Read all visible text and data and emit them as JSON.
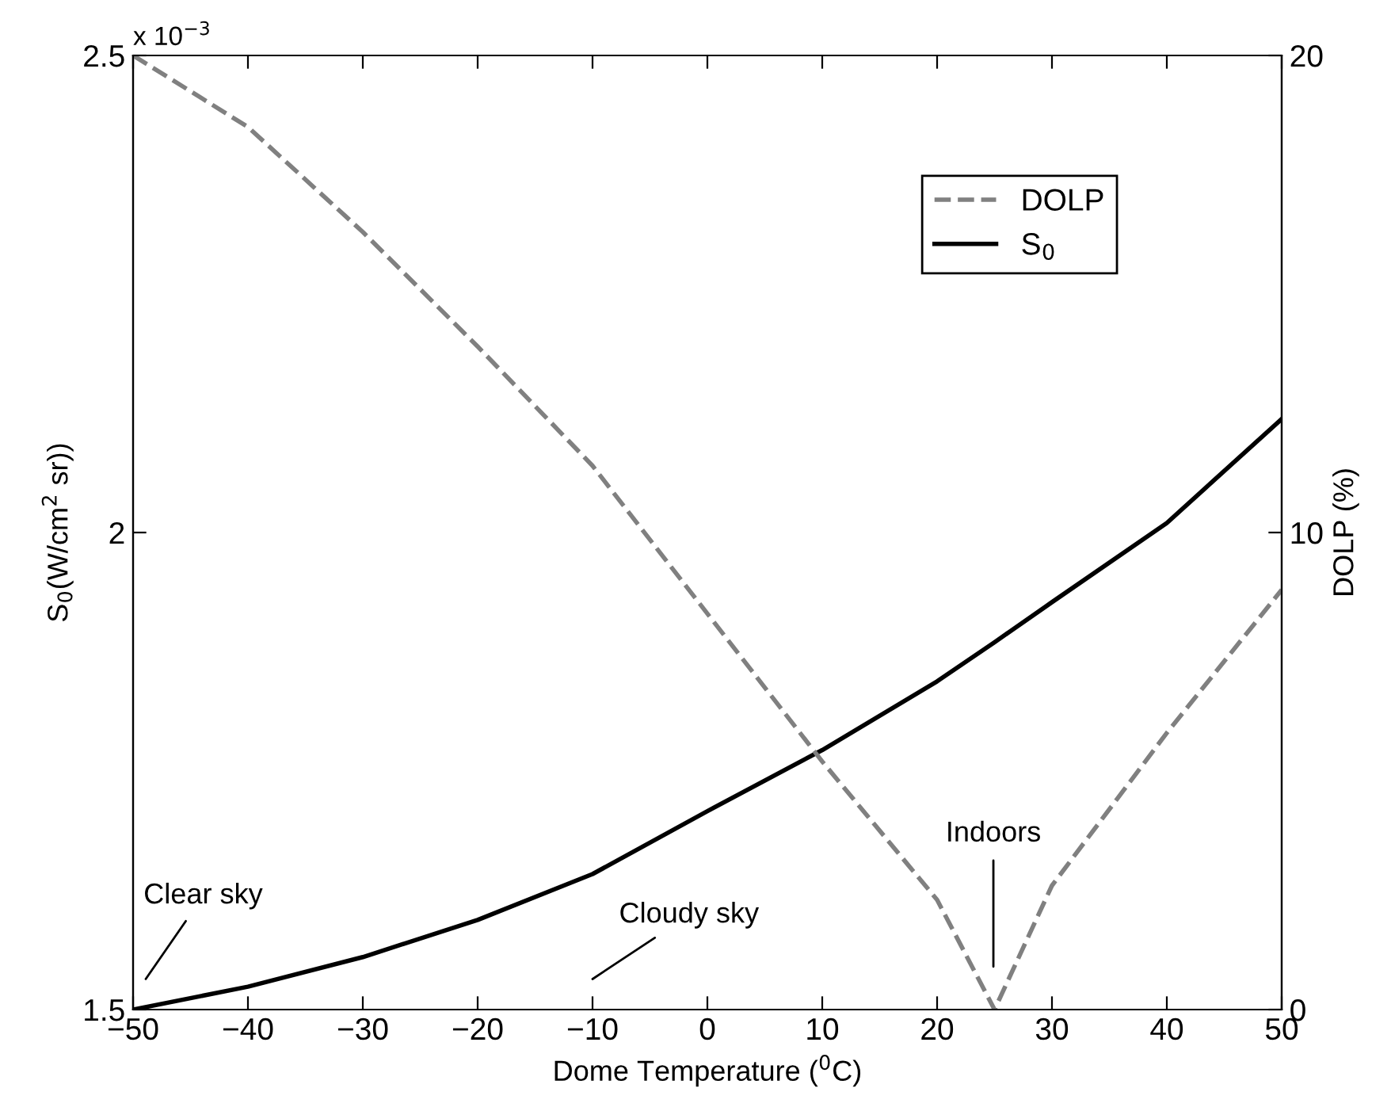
{
  "chart_data": {
    "type": "line",
    "xlabel": "Dome Temperature ($^{0}$C)",
    "ylabel": "S$_{0}$(W/cm$^{2}$ sr))",
    "y2label": "DOLP (%)",
    "x": [
      -50,
      -40,
      -30,
      -20,
      -10,
      0,
      10,
      20,
      25,
      30,
      40,
      50
    ],
    "series": [
      {
        "name": "DOLP",
        "color": "#808080",
        "axis": "y2",
        "line_style": "dashed",
        "values": [
          20,
          18.5,
          16.3,
          13.9,
          11.4,
          8.3,
          5.2,
          2.3,
          0,
          2.6,
          5.8,
          8.8
        ]
      },
      {
        "name": "S$_{0}$",
        "color": "#000000",
        "axis": "y",
        "line_style": "solid",
        "values": [
          1.5,
          1.524,
          1.555,
          1.594,
          1.642,
          1.708,
          1.772,
          1.844,
          1.885,
          1.927,
          2.01,
          2.119
        ]
      }
    ],
    "xlim": [
      -50,
      50
    ],
    "xticks": [
      -50,
      -40,
      -30,
      -20,
      -10,
      0,
      10,
      20,
      30,
      40,
      50
    ],
    "ylim": [
      1.5,
      2.5
    ],
    "yticks": [
      1.5,
      2,
      2.5
    ],
    "y2lim": [
      0,
      20
    ],
    "y2ticks": [
      0,
      10,
      20
    ],
    "annotations": [
      "x 10$^{−3}$",
      "Clear sky",
      "Cloudy sky",
      "Indoors"
    ],
    "legend": "top right",
    "grid": false
  }
}
